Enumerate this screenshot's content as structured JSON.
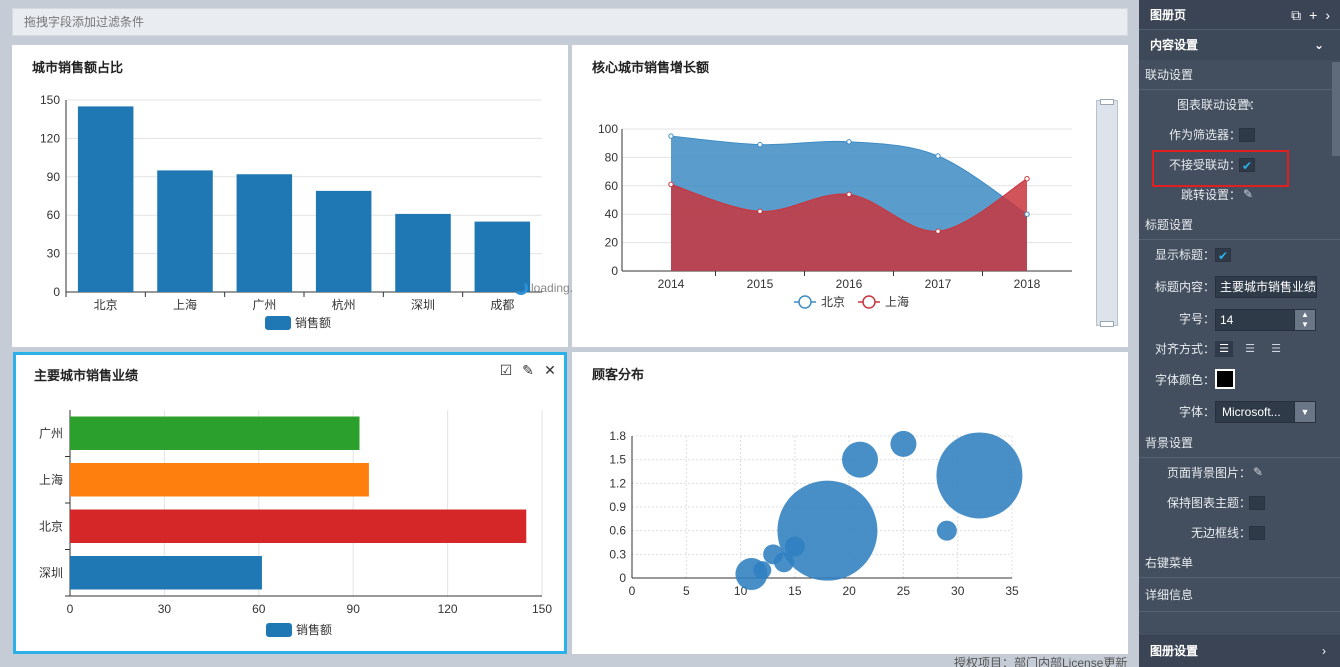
{
  "filter_bar": {
    "placeholder": "拖拽字段添加过滤条件"
  },
  "license": "授权项目：部门内部License更新",
  "loading": "loading...",
  "panels": {
    "p1": {
      "title": "城市销售额占比"
    },
    "p2": {
      "title": "核心城市销售增长额"
    },
    "p3": {
      "title": "主要城市销售业绩"
    },
    "p4": {
      "title": "顾客分布"
    }
  },
  "sidebar": {
    "header": "图册页",
    "content_settings": "内容设置",
    "link_section": "联动设置",
    "chart_link_label": "图表联动设置：",
    "as_filter_label": "作为筛选器：",
    "no_link_label": "不接受联动：",
    "jump_label": "跳转设置：",
    "title_section": "标题设置",
    "show_title_label": "显示标题：",
    "title_content_label": "标题内容：",
    "title_content_value": "主要城市销售业绩",
    "font_size_label": "字号：",
    "font_size_value": "14",
    "align_label": "对齐方式：",
    "font_color_label": "字体颜色：",
    "font_label": "字体：",
    "font_value": "Microsoft...",
    "bg_section": "背景设置",
    "page_bg_label": "页面背景图片：",
    "keep_theme_label": "保持图表主题：",
    "no_border_label": "无边框线：",
    "context_menu": "右键菜单",
    "detail_info": "详细信息",
    "album_settings": "图册设置"
  },
  "colors": {
    "accent": "#2bb0e8",
    "bar": "#1f77b4",
    "red": "#d62728",
    "orange": "#ff7f0e",
    "green": "#2ca02c",
    "sidebar": "#434e5e"
  },
  "chart_data": [
    {
      "id": "p1",
      "type": "bar",
      "title": "城市销售额占比",
      "categories": [
        "北京",
        "上海",
        "广州",
        "杭州",
        "深圳",
        "成都"
      ],
      "values": [
        145,
        95,
        92,
        79,
        61,
        55
      ],
      "ylim": [
        0,
        150
      ],
      "yticks": [
        0,
        30,
        60,
        90,
        120,
        150
      ],
      "legend": [
        "销售额"
      ],
      "legend_position": "bottom"
    },
    {
      "id": "p2",
      "type": "area",
      "title": "核心城市销售增长额",
      "categories": [
        "2014",
        "2015",
        "2016",
        "2017",
        "2018"
      ],
      "series": [
        {
          "name": "北京",
          "values": [
            95,
            89,
            91,
            81,
            40
          ]
        },
        {
          "name": "上海",
          "values": [
            61,
            42,
            54,
            28,
            65
          ]
        }
      ],
      "ylim": [
        0,
        100
      ],
      "yticks": [
        0,
        20,
        40,
        60,
        80,
        100
      ],
      "legend_position": "bottom"
    },
    {
      "id": "p3",
      "type": "bar",
      "orientation": "horizontal",
      "title": "主要城市销售业绩",
      "categories": [
        "深圳",
        "北京",
        "上海",
        "广州"
      ],
      "values": [
        61,
        145,
        95,
        92
      ],
      "xlim": [
        0,
        150
      ],
      "xticks": [
        0,
        30,
        60,
        90,
        120,
        150
      ],
      "legend": [
        "销售额"
      ],
      "legend_position": "bottom"
    },
    {
      "id": "p4",
      "type": "scatter",
      "title": "顾客分布",
      "points": [
        {
          "x": 11,
          "y": 0.05,
          "size": 1.6
        },
        {
          "x": 12,
          "y": 0.1,
          "size": 0.9
        },
        {
          "x": 13,
          "y": 0.3,
          "size": 1.0
        },
        {
          "x": 14,
          "y": 0.2,
          "size": 1.0
        },
        {
          "x": 15,
          "y": 0.4,
          "size": 1.0
        },
        {
          "x": 18,
          "y": 0.6,
          "size": 5.0
        },
        {
          "x": 21,
          "y": 1.5,
          "size": 1.8
        },
        {
          "x": 25,
          "y": 1.7,
          "size": 1.3
        },
        {
          "x": 29,
          "y": 0.6,
          "size": 1.0
        },
        {
          "x": 32,
          "y": 1.3,
          "size": 4.3
        }
      ],
      "xlim": [
        0,
        35
      ],
      "xticks": [
        0,
        5,
        10,
        15,
        20,
        25,
        30,
        35
      ],
      "ylim": [
        0,
        1.8
      ],
      "yticks": [
        0,
        0.3,
        0.6,
        0.9,
        1.2,
        1.5,
        1.8
      ]
    }
  ]
}
